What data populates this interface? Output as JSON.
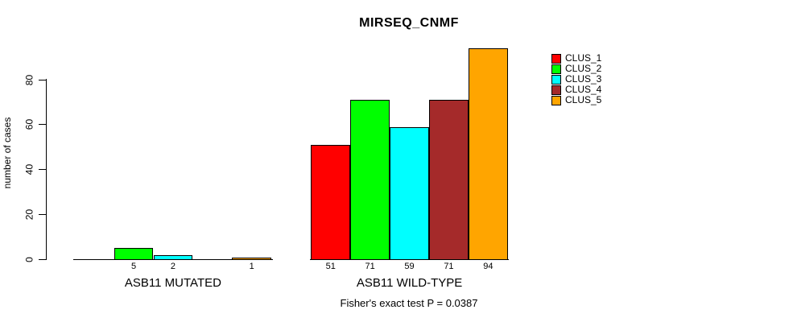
{
  "chart_data": {
    "type": "bar",
    "title": "MIRSEQ_CNMF",
    "ylabel": "number of cases",
    "xlabel": "",
    "yticks": [
      0,
      20,
      40,
      60,
      80
    ],
    "ylim": [
      0,
      94
    ],
    "grid": false,
    "legend_position": "right",
    "categories": [
      "ASB11 MUTATED",
      "ASB11 WILD-TYPE"
    ],
    "series": [
      {
        "name": "CLUS_1",
        "color": "#FF0000",
        "values": [
          0,
          51
        ]
      },
      {
        "name": "CLUS_2",
        "color": "#00FF00",
        "values": [
          5,
          71
        ]
      },
      {
        "name": "CLUS_3",
        "color": "#00FFFF",
        "values": [
          2,
          59
        ]
      },
      {
        "name": "CLUS_4",
        "color": "#A52A2A",
        "values": [
          0,
          71
        ]
      },
      {
        "name": "CLUS_5",
        "color": "#FFA500",
        "values": [
          1,
          94
        ]
      }
    ],
    "bar_labels": [
      [
        "",
        "5",
        "2",
        "",
        "1"
      ],
      [
        "51",
        "71",
        "59",
        "71",
        "94"
      ]
    ],
    "caption": "Fisher's exact test P = 0.0387"
  }
}
